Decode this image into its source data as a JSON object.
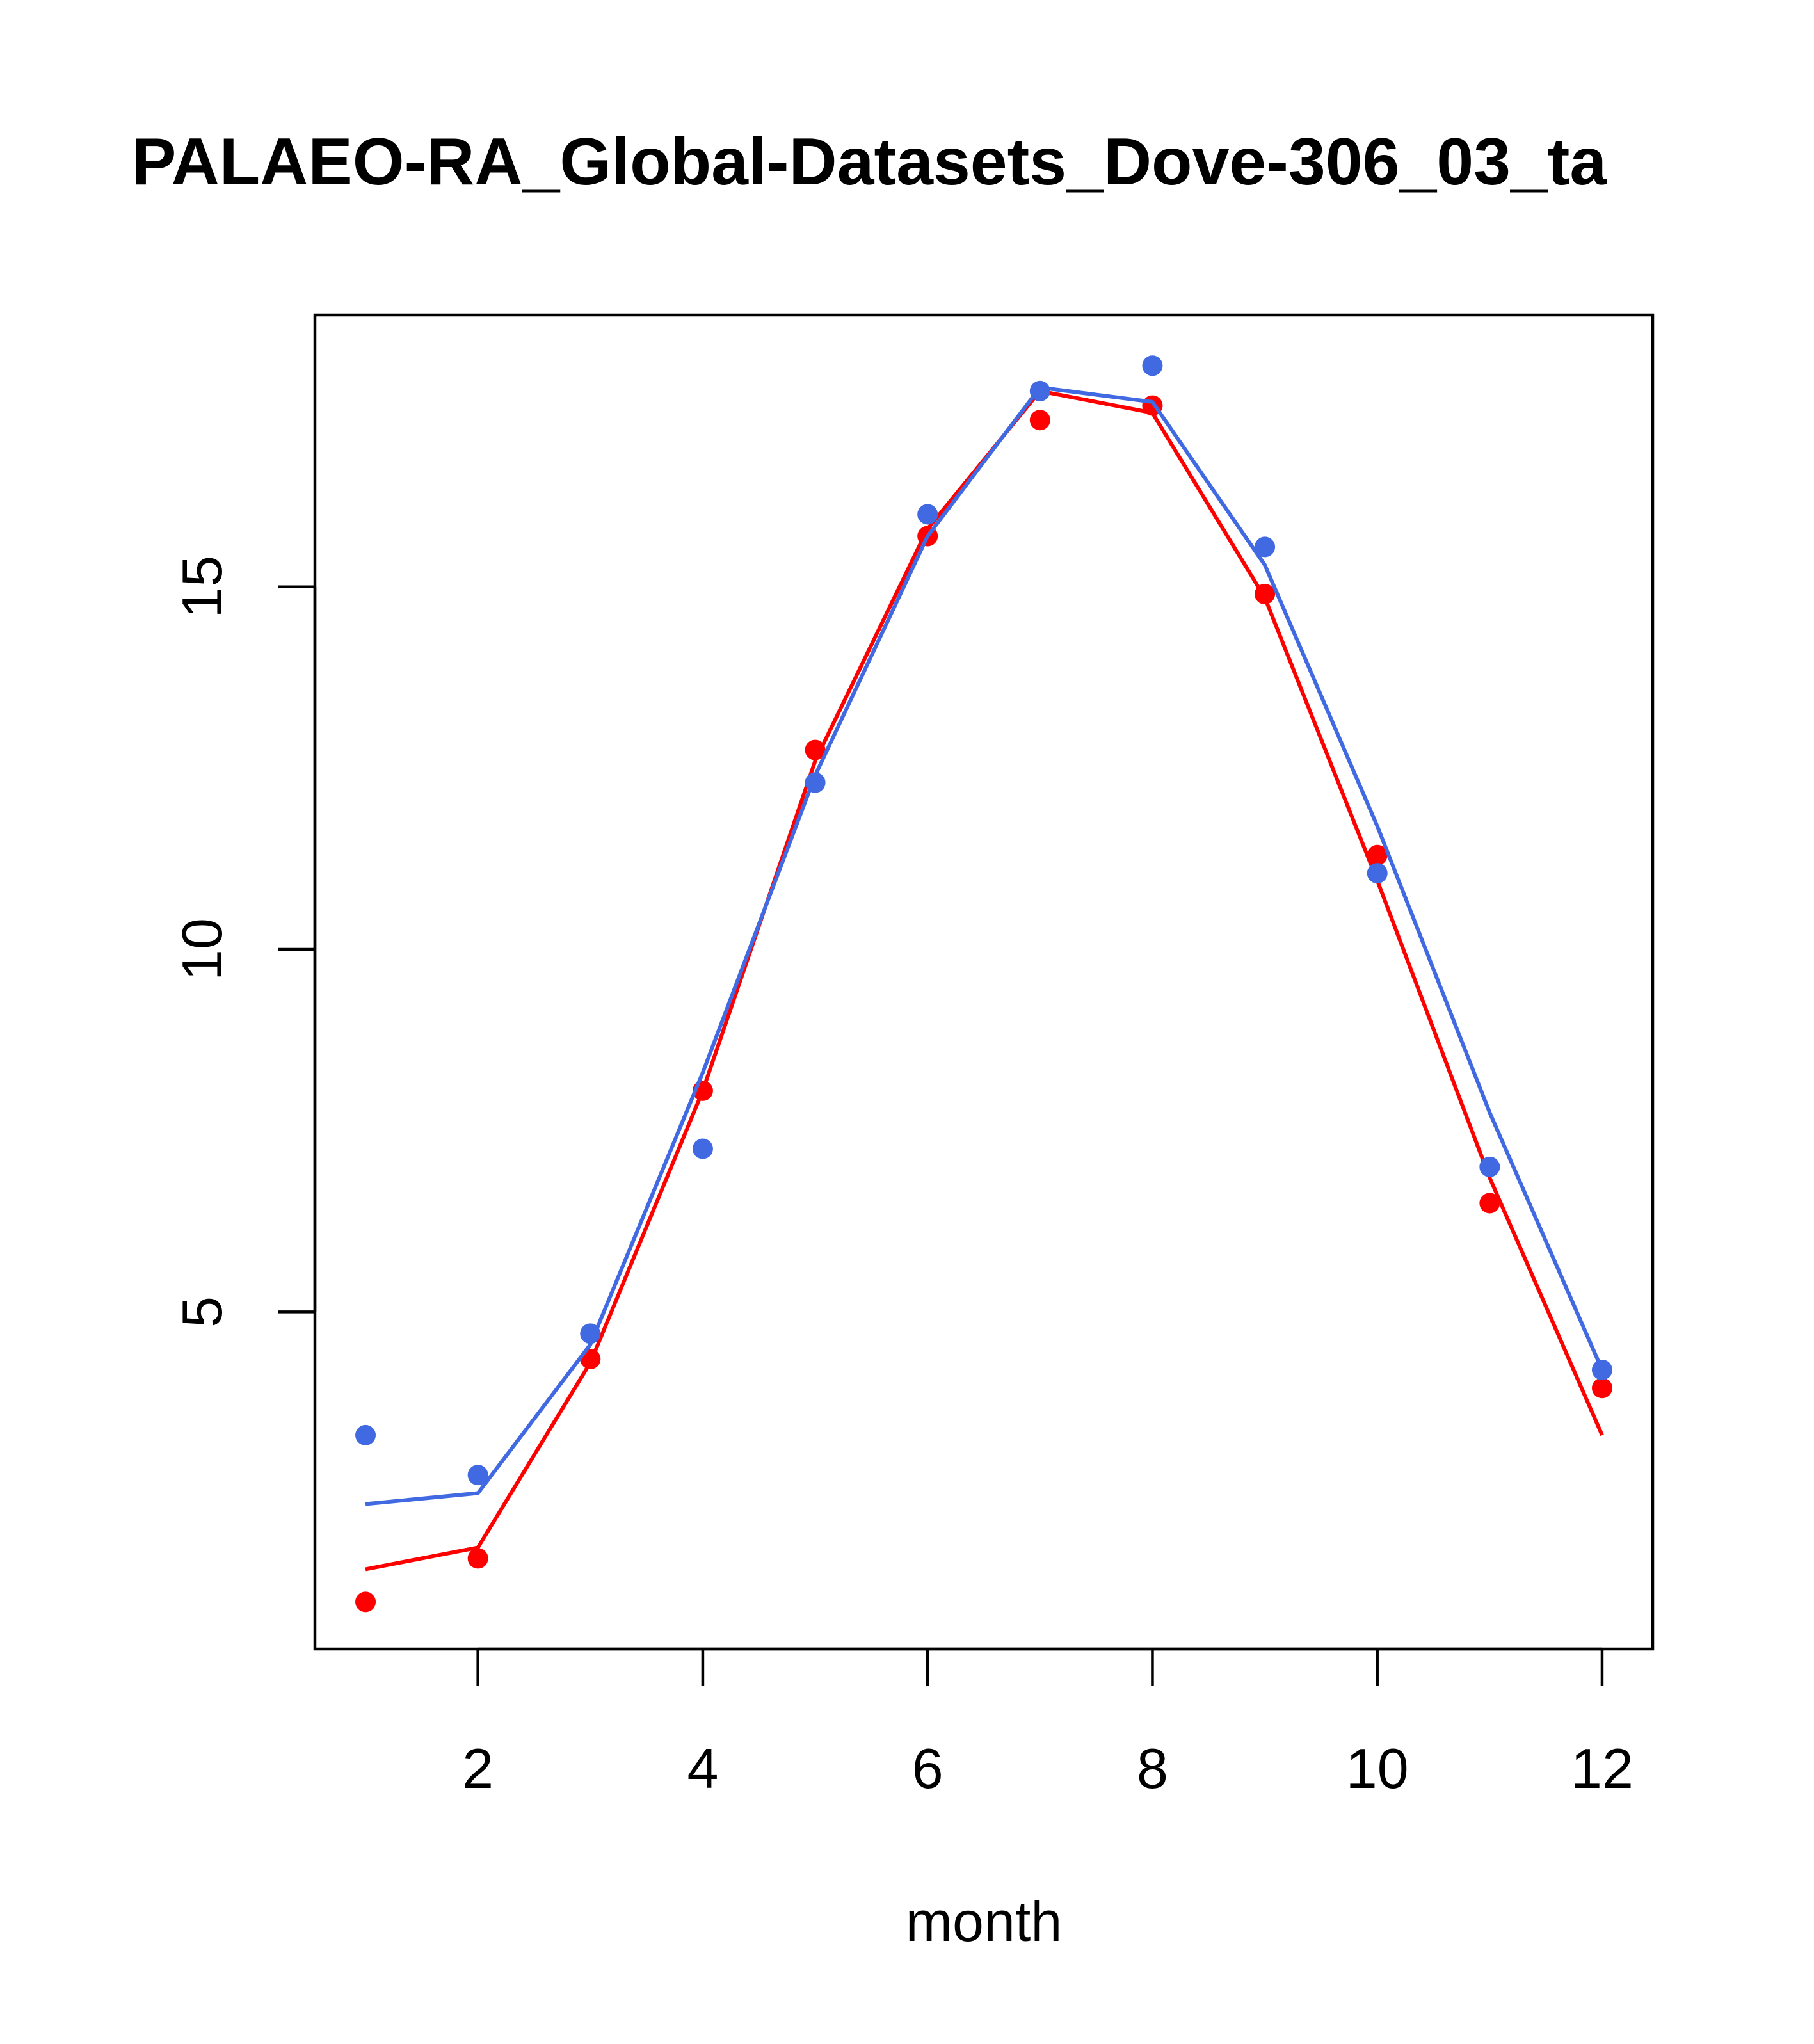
{
  "chart_data": {
    "type": "line",
    "title": "PALAEO-RA_Global-Datasets_Dove-306_03_ta",
    "xlabel": "month",
    "ylabel": "",
    "xlim": [
      0.55,
      12.45
    ],
    "ylim": [
      0.35,
      18.75
    ],
    "xticks": [
      2,
      4,
      6,
      8,
      10,
      12
    ],
    "yticks": [
      5,
      10,
      15
    ],
    "x": [
      1,
      2,
      3,
      4,
      5,
      6,
      7,
      8,
      9,
      10,
      11,
      12
    ],
    "series": [
      {
        "color": "#ff0000",
        "points": [
          1.0,
          1.6,
          4.35,
          8.05,
          12.75,
          15.7,
          17.3,
          17.5,
          14.9,
          11.3,
          6.5,
          3.95
        ],
        "line": [
          1.45,
          1.75,
          4.3,
          8.05,
          12.6,
          15.8,
          17.7,
          17.4,
          14.85,
          10.95,
          6.85,
          3.3
        ]
      },
      {
        "color": "#4169e1",
        "points": [
          3.3,
          2.75,
          4.7,
          7.25,
          12.3,
          16.0,
          17.7,
          18.05,
          15.55,
          11.05,
          7.0,
          4.2
        ],
        "line": [
          2.35,
          2.5,
          4.55,
          8.3,
          12.4,
          15.7,
          17.75,
          17.55,
          15.3,
          11.7,
          7.75,
          4.2
        ]
      }
    ],
    "grid": false,
    "legend": "none"
  }
}
